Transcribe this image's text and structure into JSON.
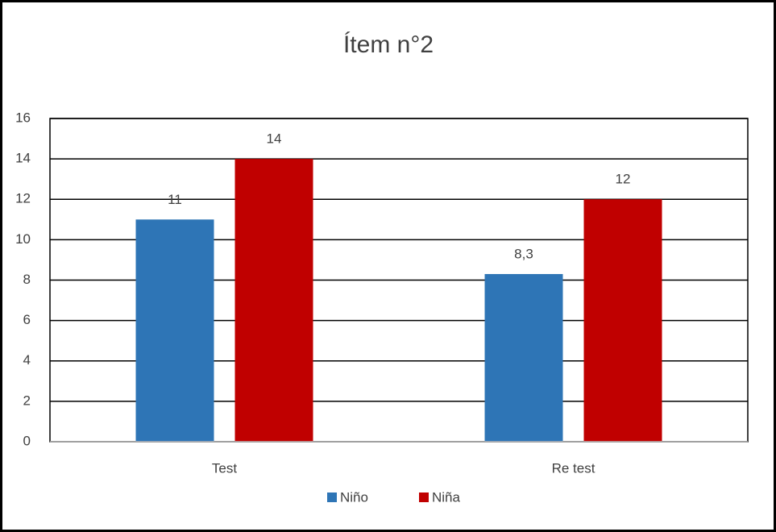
{
  "chart_data": {
    "type": "bar",
    "title": "Ítem n°2",
    "categories": [
      "Test",
      "Re test"
    ],
    "series": [
      {
        "name": "Niño",
        "color": "#2e75b6",
        "values": [
          11,
          8.3
        ],
        "value_labels": [
          "11",
          "8,3"
        ]
      },
      {
        "name": "Niña",
        "color": "#c00000",
        "values": [
          14,
          12
        ],
        "value_labels": [
          "14",
          "12"
        ]
      }
    ],
    "ylim": [
      0,
      16
    ],
    "yticks": [
      0,
      2,
      4,
      6,
      8,
      10,
      12,
      14,
      16
    ],
    "grid": true,
    "legend": "bottom"
  }
}
